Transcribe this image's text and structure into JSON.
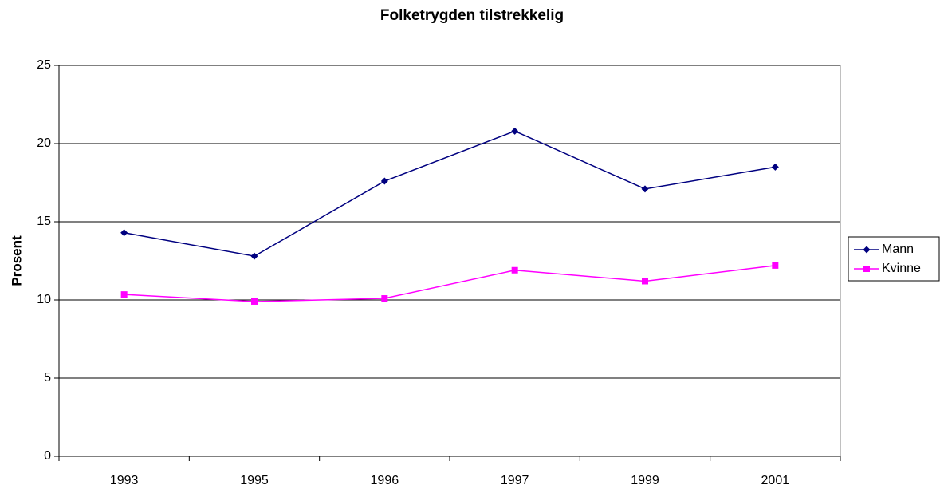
{
  "chart_data": {
    "type": "line",
    "title": "Folketrygden tilstrekkelig",
    "y_label": "Prosent",
    "categories": [
      "1993",
      "1995",
      "1996",
      "1997",
      "1999",
      "2001"
    ],
    "series": [
      {
        "name": "Mann",
        "color": "#000080",
        "marker": "diamond",
        "values": [
          14.3,
          12.8,
          17.6,
          20.8,
          17.1,
          18.5
        ]
      },
      {
        "name": "Kvinne",
        "color": "#ff00ff",
        "marker": "square",
        "values": [
          10.35,
          9.9,
          10.1,
          11.9,
          11.2,
          12.2
        ]
      }
    ],
    "ylim": [
      0,
      25
    ],
    "yticks": [
      0,
      5,
      10,
      15,
      20,
      25
    ],
    "grid": true,
    "legend": "right"
  }
}
